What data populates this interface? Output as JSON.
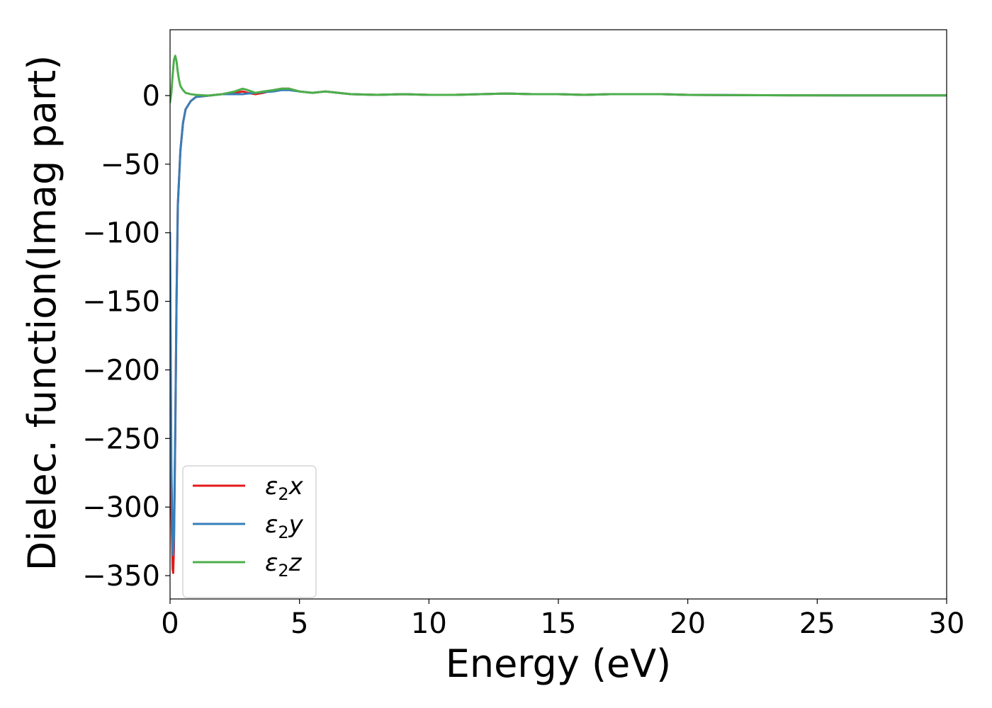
{
  "chart_data": {
    "type": "line",
    "title": "",
    "xlabel": "Energy (eV)",
    "ylabel": "Dielec. function(Imag part)",
    "xlim": [
      0,
      30
    ],
    "ylim": [
      -367,
      48
    ],
    "xticks": [
      0,
      5,
      10,
      15,
      20,
      25,
      30
    ],
    "xtick_labels": [
      "0",
      "5",
      "10",
      "15",
      "20",
      "25",
      "30"
    ],
    "yticks": [
      0,
      -50,
      -100,
      -150,
      -200,
      -250,
      -300,
      -350
    ],
    "ytick_labels": [
      "0",
      "−50",
      "−100",
      "−150",
      "−200",
      "−250",
      "−300",
      "−350"
    ],
    "grid": false,
    "legend_position": "lower-left",
    "series": [
      {
        "name": "ε2x",
        "legend_base": "ε",
        "legend_sub": "2",
        "legend_var": "x",
        "color": "#e41a1c",
        "x": [
          0.0,
          0.05,
          0.1,
          0.12,
          0.15,
          0.2,
          0.25,
          0.3,
          0.4,
          0.5,
          0.6,
          0.8,
          1.0,
          1.5,
          2.0,
          2.5,
          2.8,
          3.0,
          3.3,
          3.6,
          4.0,
          4.3,
          4.6,
          5.0,
          5.5,
          6.0,
          6.5,
          7.0,
          8.0,
          9.0,
          10.0,
          11.0,
          12.0,
          13.0,
          14.0,
          15.0,
          16.0,
          17.0,
          18.0,
          19.0,
          20.0,
          22.0,
          24.0,
          26.0,
          28.0,
          30.0
        ],
        "values": [
          -120,
          -300,
          -345,
          -348,
          -330,
          -250,
          -150,
          -80,
          -40,
          -20,
          -10,
          -4,
          -1,
          0,
          1,
          2,
          3,
          2,
          1,
          2,
          4,
          5,
          5,
          3,
          2,
          3,
          2,
          1,
          0.5,
          1,
          0.5,
          0.5,
          1,
          1.5,
          1,
          1,
          0.5,
          1,
          1,
          1,
          0.5,
          0.3,
          0.2,
          0.1,
          0.1,
          0.1
        ]
      },
      {
        "name": "ε2y",
        "legend_base": "ε",
        "legend_sub": "2",
        "legend_var": "y",
        "color": "#377eb8",
        "x": [
          0.0,
          0.05,
          0.1,
          0.12,
          0.15,
          0.2,
          0.25,
          0.3,
          0.4,
          0.5,
          0.6,
          0.8,
          1.0,
          1.5,
          2.0,
          2.5,
          2.8,
          3.0,
          3.3,
          3.6,
          4.0,
          4.3,
          4.6,
          5.0,
          5.5,
          6.0,
          6.5,
          7.0,
          8.0,
          9.0,
          10.0,
          11.0,
          12.0,
          13.0,
          14.0,
          15.0,
          16.0,
          17.0,
          18.0,
          19.0,
          20.0,
          22.0,
          24.0,
          26.0,
          28.0,
          30.0
        ],
        "values": [
          -100,
          -270,
          -330,
          -335,
          -320,
          -245,
          -150,
          -80,
          -40,
          -20,
          -10,
          -4,
          -1,
          0,
          1,
          1,
          1,
          1.5,
          2,
          2.5,
          3,
          4,
          4,
          3,
          2,
          3,
          2,
          1,
          0.5,
          1,
          0.5,
          0.5,
          1,
          1.5,
          1,
          1,
          0.5,
          1,
          1,
          1,
          0.5,
          0.3,
          0.2,
          0.1,
          0.1,
          0.1
        ]
      },
      {
        "name": "ε2z",
        "legend_base": "ε",
        "legend_sub": "2",
        "legend_var": "z",
        "color": "#4daf4a",
        "x": [
          0.0,
          0.05,
          0.1,
          0.15,
          0.2,
          0.25,
          0.3,
          0.35,
          0.4,
          0.5,
          0.6,
          0.8,
          1.0,
          1.5,
          2.0,
          2.5,
          2.8,
          3.0,
          3.3,
          3.6,
          4.0,
          4.3,
          4.6,
          5.0,
          5.5,
          6.0,
          6.5,
          7.0,
          8.0,
          9.0,
          10.0,
          11.0,
          12.0,
          13.0,
          14.0,
          15.0,
          16.0,
          17.0,
          18.0,
          19.0,
          20.0,
          22.0,
          24.0,
          26.0,
          28.0,
          30.0
        ],
        "values": [
          -5,
          2,
          15,
          26,
          29,
          25,
          17,
          11,
          7,
          4,
          2,
          1,
          0.5,
          0,
          1,
          3,
          5,
          4,
          2,
          3,
          4,
          5,
          5,
          3,
          2,
          3,
          2,
          1,
          0.5,
          1,
          0.5,
          0.5,
          1,
          1.5,
          1,
          1,
          0.5,
          1,
          1,
          1,
          0.5,
          0.3,
          0.2,
          0.1,
          0.1,
          0.1
        ]
      }
    ]
  }
}
